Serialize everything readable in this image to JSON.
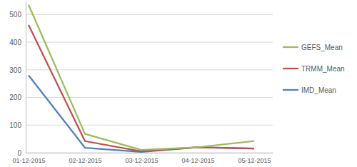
{
  "chart_data": {
    "type": "line",
    "categories": [
      "01-12-2015",
      "02-12-2015",
      "03-12-2015",
      "04-12-2015",
      "05-12-2015"
    ],
    "series": [
      {
        "name": "GEFS_Mean",
        "color": "#9bbb59",
        "values": [
          535,
          68,
          10,
          20,
          42
        ]
      },
      {
        "name": "TRMM_Mean",
        "color": "#c0504d",
        "values": [
          462,
          42,
          5,
          20,
          15
        ]
      },
      {
        "name": "IMD_Mean",
        "color": "#4f81bd",
        "values": [
          280,
          18,
          3,
          20,
          15
        ]
      }
    ],
    "ylim": [
      0,
      550
    ],
    "yticks": [
      0,
      100,
      200,
      300,
      400,
      500
    ],
    "grid": true,
    "legend": "right"
  }
}
